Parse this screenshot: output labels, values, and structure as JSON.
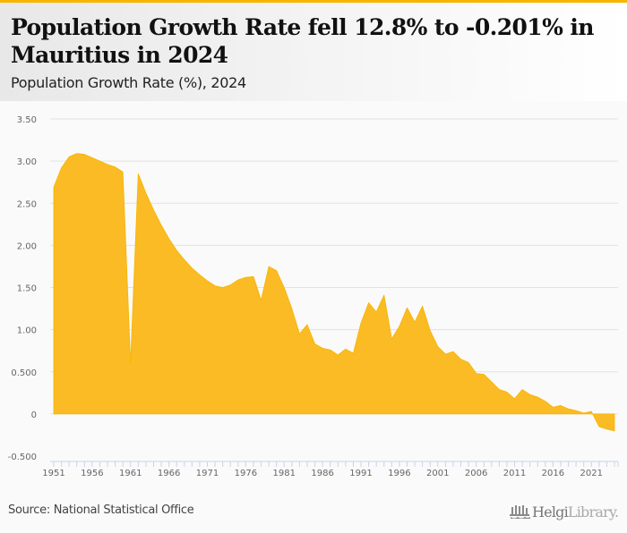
{
  "header": {
    "title": "Population Growth Rate fell 12.8% to -0.201% in Mauritius in 2024",
    "subtitle": "Population Growth Rate (%), 2024"
  },
  "footer": {
    "source": "Source: National Statistical Office",
    "brand_strong": "Helgi",
    "brand_light": "Library."
  },
  "colors": {
    "accent": "#f7b500",
    "area_fill": "#fabb24",
    "grid": "#e2e2e2",
    "axis": "#c8d4e8",
    "tick_label": "#666666"
  },
  "chart_data": {
    "type": "area",
    "title": "Population Growth Rate fell 12.8% to -0.201% in Mauritius in 2024",
    "subtitle": "Population Growth Rate (%), 2024",
    "xlabel": "",
    "ylabel": "",
    "ylim": [
      -0.5,
      3.5
    ],
    "yticks": [
      -0.5,
      0,
      0.5,
      1.0,
      1.5,
      2.0,
      2.5,
      3.0,
      3.5
    ],
    "ytick_labels": [
      "-0.500",
      "0",
      "0.500",
      "1.00",
      "1.50",
      "2.00",
      "2.50",
      "3.00",
      "3.50"
    ],
    "xtick_labels": [
      "1951",
      "1956",
      "1961",
      "1966",
      "1971",
      "1976",
      "1981",
      "1986",
      "1991",
      "1996",
      "2001",
      "2006",
      "2011",
      "2016",
      "2021"
    ],
    "grid": true,
    "legend": "none",
    "series": [
      {
        "name": "Population Growth Rate (%)",
        "x": [
          1951,
          1952,
          1953,
          1954,
          1955,
          1956,
          1957,
          1958,
          1959,
          1960,
          1961,
          1962,
          1963,
          1964,
          1965,
          1966,
          1967,
          1968,
          1969,
          1970,
          1971,
          1972,
          1973,
          1974,
          1975,
          1976,
          1977,
          1978,
          1979,
          1980,
          1981,
          1982,
          1983,
          1984,
          1985,
          1986,
          1987,
          1988,
          1989,
          1990,
          1991,
          1992,
          1993,
          1994,
          1995,
          1996,
          1997,
          1998,
          1999,
          2000,
          2001,
          2002,
          2003,
          2004,
          2005,
          2006,
          2007,
          2008,
          2009,
          2010,
          2011,
          2012,
          2013,
          2014,
          2015,
          2016,
          2017,
          2018,
          2019,
          2020,
          2021,
          2022,
          2023,
          2024
        ],
        "values": [
          2.69,
          2.92,
          3.05,
          3.09,
          3.08,
          3.04,
          3.0,
          2.96,
          2.93,
          2.87,
          0.6,
          2.85,
          2.62,
          2.42,
          2.24,
          2.08,
          1.94,
          1.83,
          1.73,
          1.65,
          1.58,
          1.52,
          1.5,
          1.53,
          1.59,
          1.62,
          1.63,
          1.35,
          1.75,
          1.7,
          1.5,
          1.25,
          0.95,
          1.06,
          0.83,
          0.78,
          0.76,
          0.7,
          0.77,
          0.72,
          1.08,
          1.32,
          1.21,
          1.41,
          0.89,
          1.04,
          1.26,
          1.09,
          1.28,
          0.99,
          0.8,
          0.71,
          0.74,
          0.65,
          0.61,
          0.48,
          0.47,
          0.38,
          0.29,
          0.26,
          0.18,
          0.29,
          0.23,
          0.2,
          0.15,
          0.08,
          0.1,
          0.06,
          0.04,
          0.01,
          0.03,
          -0.15,
          -0.18,
          -0.201
        ]
      }
    ]
  }
}
